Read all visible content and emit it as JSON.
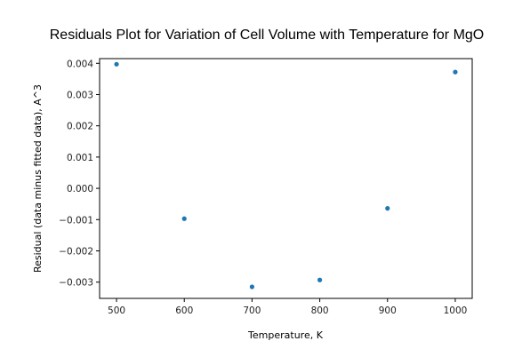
{
  "chart_data": {
    "type": "scatter",
    "title": "Residuals Plot for Variation of Cell Volume with Temperature for MgO",
    "xlabel": "Temperature, K",
    "ylabel": "Residual (data minus fitted data), A^3",
    "x": [
      500,
      600,
      700,
      800,
      900,
      1000
    ],
    "y": [
      0.00397,
      -0.00097,
      -0.00315,
      -0.00293,
      -0.00064,
      0.00372
    ],
    "xlim": [
      475,
      1025
    ],
    "ylim": [
      -0.00352,
      0.00415
    ],
    "xticks": [
      "500",
      "600",
      "700",
      "800",
      "900",
      "1000"
    ],
    "yticks": [
      "0.004",
      "0.003",
      "0.002",
      "0.001",
      "0.000",
      "−0.001",
      "−0.002",
      "−0.003"
    ],
    "grid": false,
    "point_color": "#1f77b4"
  }
}
